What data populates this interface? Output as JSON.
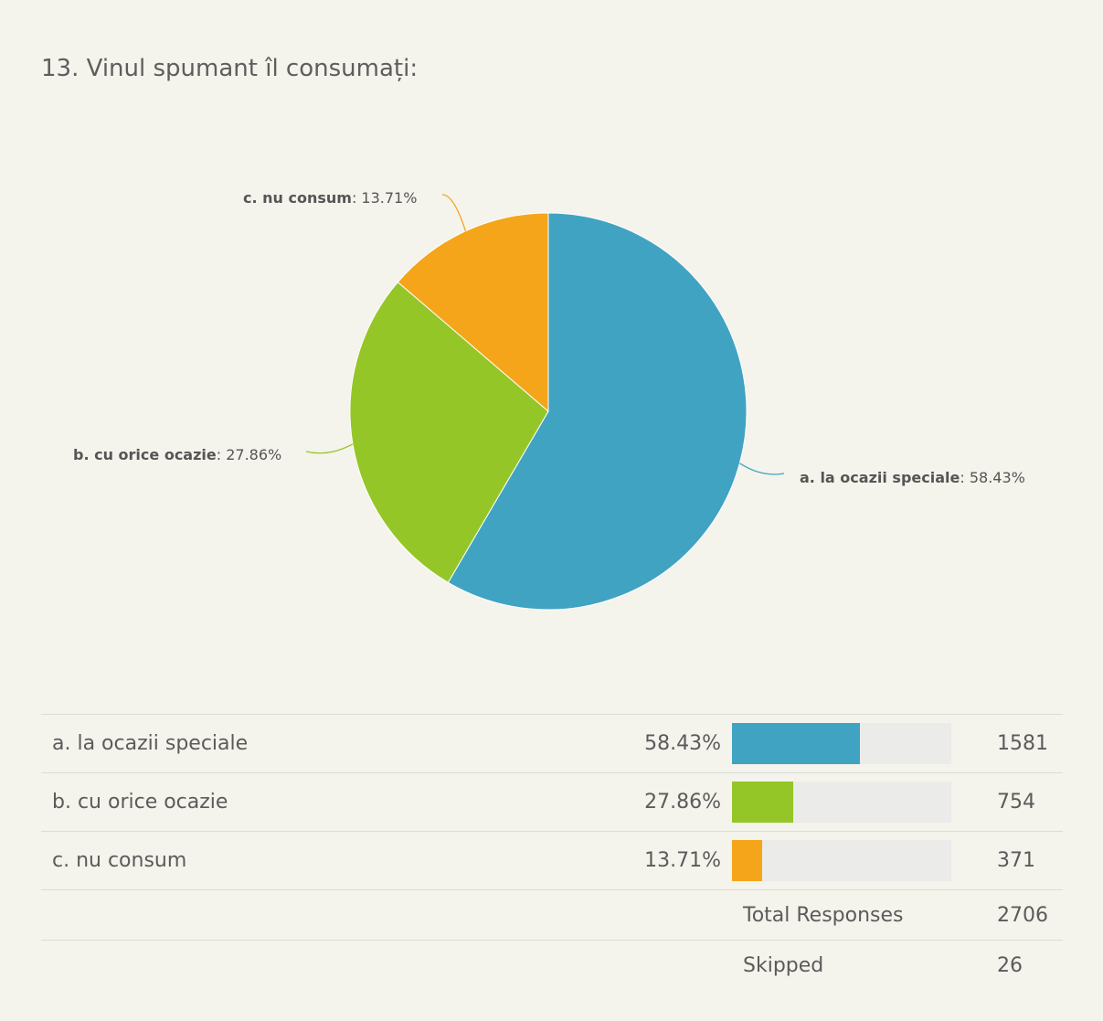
{
  "title": "13. Vinul spumant îl consumați:",
  "chart_data": {
    "type": "pie",
    "title": "13. Vinul spumant îl consumați:",
    "slices": [
      {
        "name": "a. la ocazii speciale",
        "percent": 58.43,
        "percent_label": "58.43%",
        "count": 1581,
        "color": "#40a3c2"
      },
      {
        "name": "b. cu orice ocazie",
        "percent": 27.86,
        "percent_label": "27.86%",
        "count": 754,
        "color": "#95c627"
      },
      {
        "name": "c. nu consum",
        "percent": 13.71,
        "percent_label": "13.71%",
        "count": 371,
        "color": "#f4a51a"
      }
    ]
  },
  "table": {
    "rows": [
      {
        "label": "a. la ocazii speciale",
        "percent": "58.43%",
        "count": "1581",
        "fill": 0.5843,
        "color": "#40a3c2"
      },
      {
        "label": "b. cu orice ocazie",
        "percent": "27.86%",
        "count": "754",
        "fill": 0.2786,
        "color": "#95c627"
      },
      {
        "label": "c. nu consum",
        "percent": "13.71%",
        "count": "371",
        "fill": 0.1371,
        "color": "#f4a51a"
      }
    ],
    "total_label": "Total Responses",
    "total_value": "2706",
    "skipped_label": "Skipped",
    "skipped_value": "26"
  }
}
